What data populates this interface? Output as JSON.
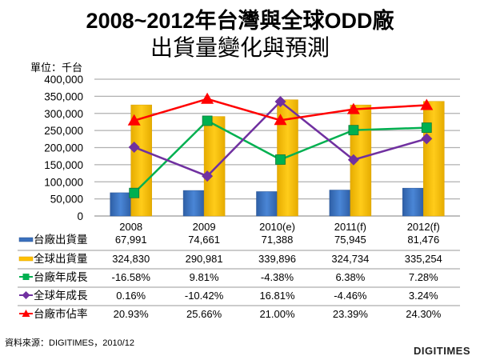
{
  "chart_data": {
    "type": "bar",
    "title": "2008~2012年台灣與全球ODD廠",
    "subtitle": "出貨量變化與預測",
    "unit_label": "單位：千台",
    "categories": [
      "2008",
      "2009",
      "2010(e)",
      "2011(f)",
      "2012(f)"
    ],
    "ylim": [
      0,
      400000
    ],
    "yticks": [
      "400,000",
      "350,000",
      "300,000",
      "250,000",
      "200,000",
      "150,000",
      "100,000",
      "50,000",
      "0"
    ],
    "ytick_values": [
      400000,
      350000,
      300000,
      250000,
      200000,
      150000,
      100000,
      50000,
      0
    ],
    "grid": true,
    "legend": "table-below",
    "series": [
      {
        "name": "台廠出貨量",
        "kind": "bar",
        "color": "#3a70bd",
        "values": [
          67991,
          74661,
          71388,
          75945,
          81476
        ],
        "labels": [
          "67,991",
          "74,661",
          "71,388",
          "75,945",
          "81,476"
        ]
      },
      {
        "name": "全球出貨量",
        "kind": "bar",
        "color": "#ffc000",
        "values": [
          324830,
          290981,
          339896,
          324734,
          335254
        ],
        "labels": [
          "324,830",
          "290,981",
          "339,896",
          "324,734",
          "335,254"
        ]
      },
      {
        "name": "台廠年成長",
        "kind": "line",
        "color": "#00b050",
        "marker": "square",
        "values": [
          -16.58,
          9.81,
          -4.38,
          6.38,
          7.28
        ],
        "labels": [
          "-16.58%",
          "9.81%",
          "-4.38%",
          "6.38%",
          "7.28%"
        ]
      },
      {
        "name": "全球年成長",
        "kind": "line",
        "color": "#7030a0",
        "marker": "diamond",
        "values": [
          0.16,
          -10.42,
          16.81,
          -4.46,
          3.24
        ],
        "labels": [
          "0.16%",
          "-10.42%",
          "16.81%",
          "-4.46%",
          "3.24%"
        ]
      },
      {
        "name": "台廠市佔率",
        "kind": "line",
        "color": "#ff0000",
        "marker": "triangle",
        "values": [
          20.93,
          25.66,
          21.0,
          23.39,
          24.3
        ],
        "labels": [
          "20.93%",
          "25.66%",
          "21.00%",
          "23.39%",
          "24.30%"
        ]
      }
    ],
    "secondary_axes": {
      "growth_range": [
        -25,
        25
      ],
      "share_range": [
        0,
        30
      ]
    }
  },
  "footer": {
    "source": "資料來源：DIGITIMES，2010/12",
    "logo": "DIGITIMES"
  }
}
